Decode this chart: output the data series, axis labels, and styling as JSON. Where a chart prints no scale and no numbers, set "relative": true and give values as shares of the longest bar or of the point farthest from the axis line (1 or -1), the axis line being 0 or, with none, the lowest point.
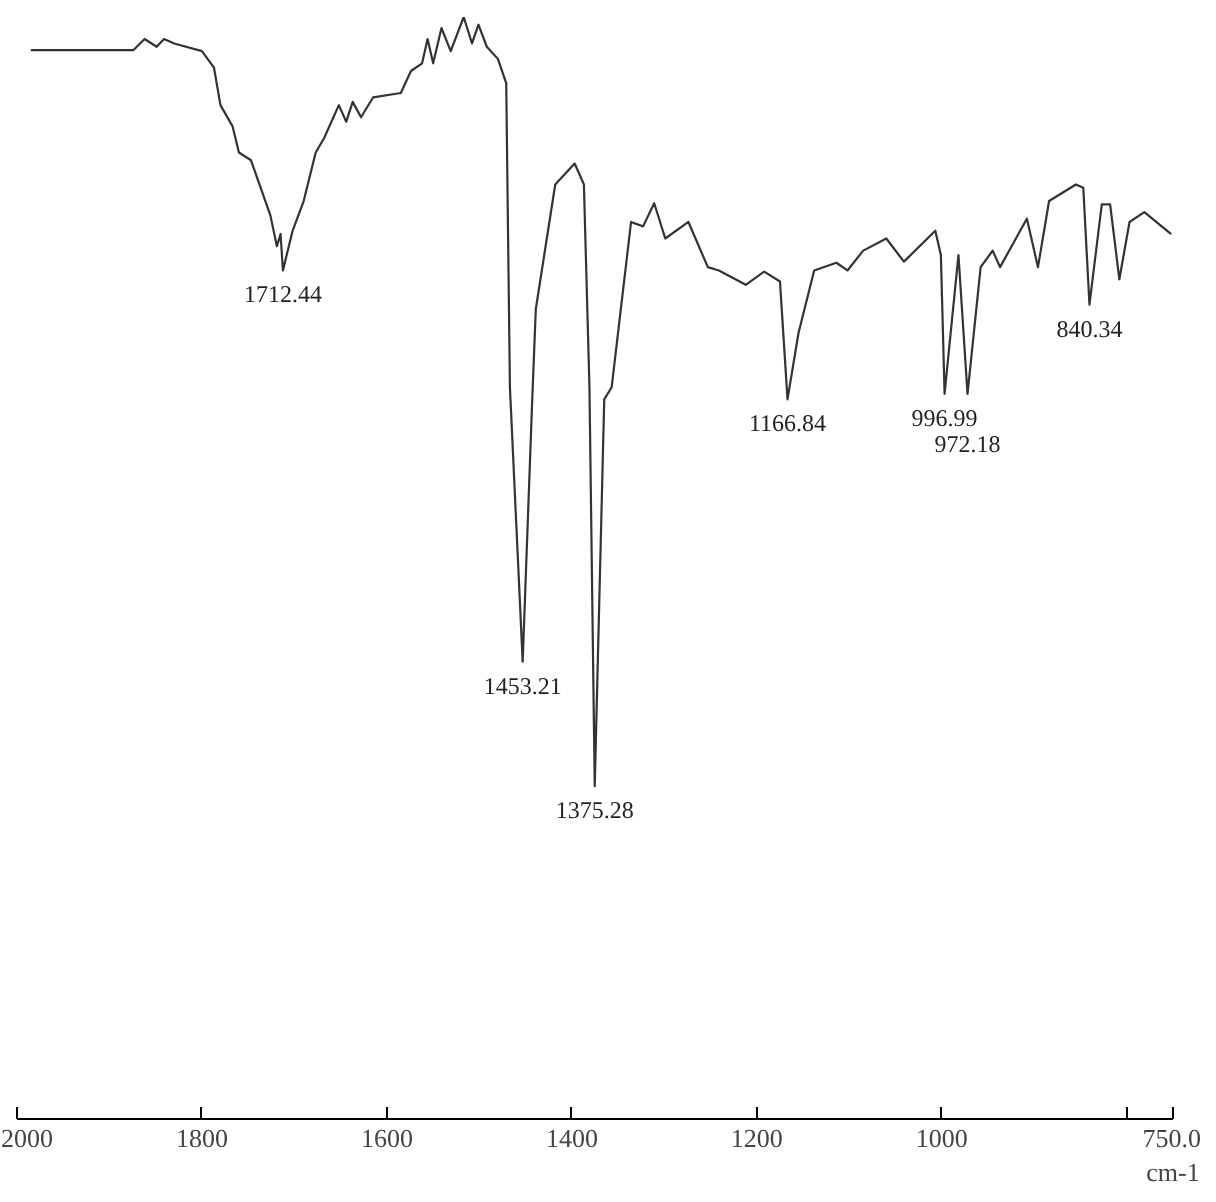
{
  "chart_data": {
    "type": "line",
    "relative": true,
    "xlabel": "cm-1",
    "xlim": [
      2000,
      750
    ],
    "xticks": [
      2000,
      1800,
      1600,
      1400,
      1200,
      1000,
      {
        "value": 800,
        "label": null
      },
      {
        "value": 750,
        "label": "750.0"
      }
    ],
    "grid": false,
    "marker": "none",
    "line_style": "solid",
    "series": [
      {
        "color": "#333333",
        "x": [
          1985,
          1874,
          1862,
          1849,
          1841,
          1830,
          1800,
          1787,
          1780,
          1767,
          1760,
          1747,
          1726,
          1719,
          1715,
          1712.44,
          1702,
          1690,
          1677,
          1668,
          1652,
          1644,
          1637,
          1628,
          1615,
          1585,
          1574,
          1562,
          1556,
          1550,
          1541,
          1531,
          1517,
          1508,
          1501,
          1492,
          1480,
          1471,
          1467,
          1453.21,
          1443,
          1439,
          1418,
          1397,
          1387,
          1381,
          1375.28,
          1365,
          1357,
          1336,
          1323,
          1311,
          1299,
          1274,
          1253,
          1241,
          1212,
          1192,
          1175,
          1166.84,
          1155,
          1138,
          1114,
          1102,
          1085,
          1060,
          1041,
          1007,
          1001,
          996.99,
          982,
          972.18,
          958,
          945,
          937,
          908,
          896,
          884,
          855,
          847,
          840.34,
          827,
          818,
          808,
          797,
          781,
          752
        ],
        "values": [
          0.97,
          0.97,
          0.98,
          0.973,
          0.98,
          0.976,
          0.969,
          0.954,
          0.92,
          0.901,
          0.877,
          0.87,
          0.82,
          0.792,
          0.803,
          0.77,
          0.806,
          0.833,
          0.877,
          0.89,
          0.92,
          0.905,
          0.923,
          0.909,
          0.927,
          0.931,
          0.951,
          0.958,
          0.98,
          0.958,
          0.99,
          0.969,
          1,
          0.976,
          0.993,
          0.973,
          0.962,
          0.94,
          0.664,
          0.415,
          0.65,
          0.735,
          0.848,
          0.867,
          0.848,
          0.664,
          0.302,
          0.653,
          0.664,
          0.814,
          0.81,
          0.831,
          0.799,
          0.814,
          0.773,
          0.77,
          0.757,
          0.769,
          0.76,
          0.653,
          0.713,
          0.77,
          0.777,
          0.77,
          0.788,
          0.799,
          0.778,
          0.806,
          0.784,
          0.658,
          0.784,
          0.658,
          0.773,
          0.788,
          0.773,
          0.817,
          0.773,
          0.833,
          0.848,
          0.845,
          0.739,
          0.83,
          0.83,
          0.762,
          0.814,
          0.823,
          0.803
        ]
      }
    ],
    "annotations": [
      {
        "text": "1712.44",
        "x": 1712.44,
        "y": 0.77
      },
      {
        "text": "1453.21",
        "x": 1453.21,
        "y": 0.415
      },
      {
        "text": "1375.28",
        "x": 1375.28,
        "y": 0.302
      },
      {
        "text": "1166.84",
        "x": 1166.84,
        "y": 0.653
      },
      {
        "text": "996.99",
        "x": 996.99,
        "y": 0.658
      },
      {
        "text": "972.18",
        "x": 972.18,
        "y": 0.658
      },
      {
        "text": "840.34",
        "x": 840.34,
        "y": 0.739
      }
    ]
  }
}
